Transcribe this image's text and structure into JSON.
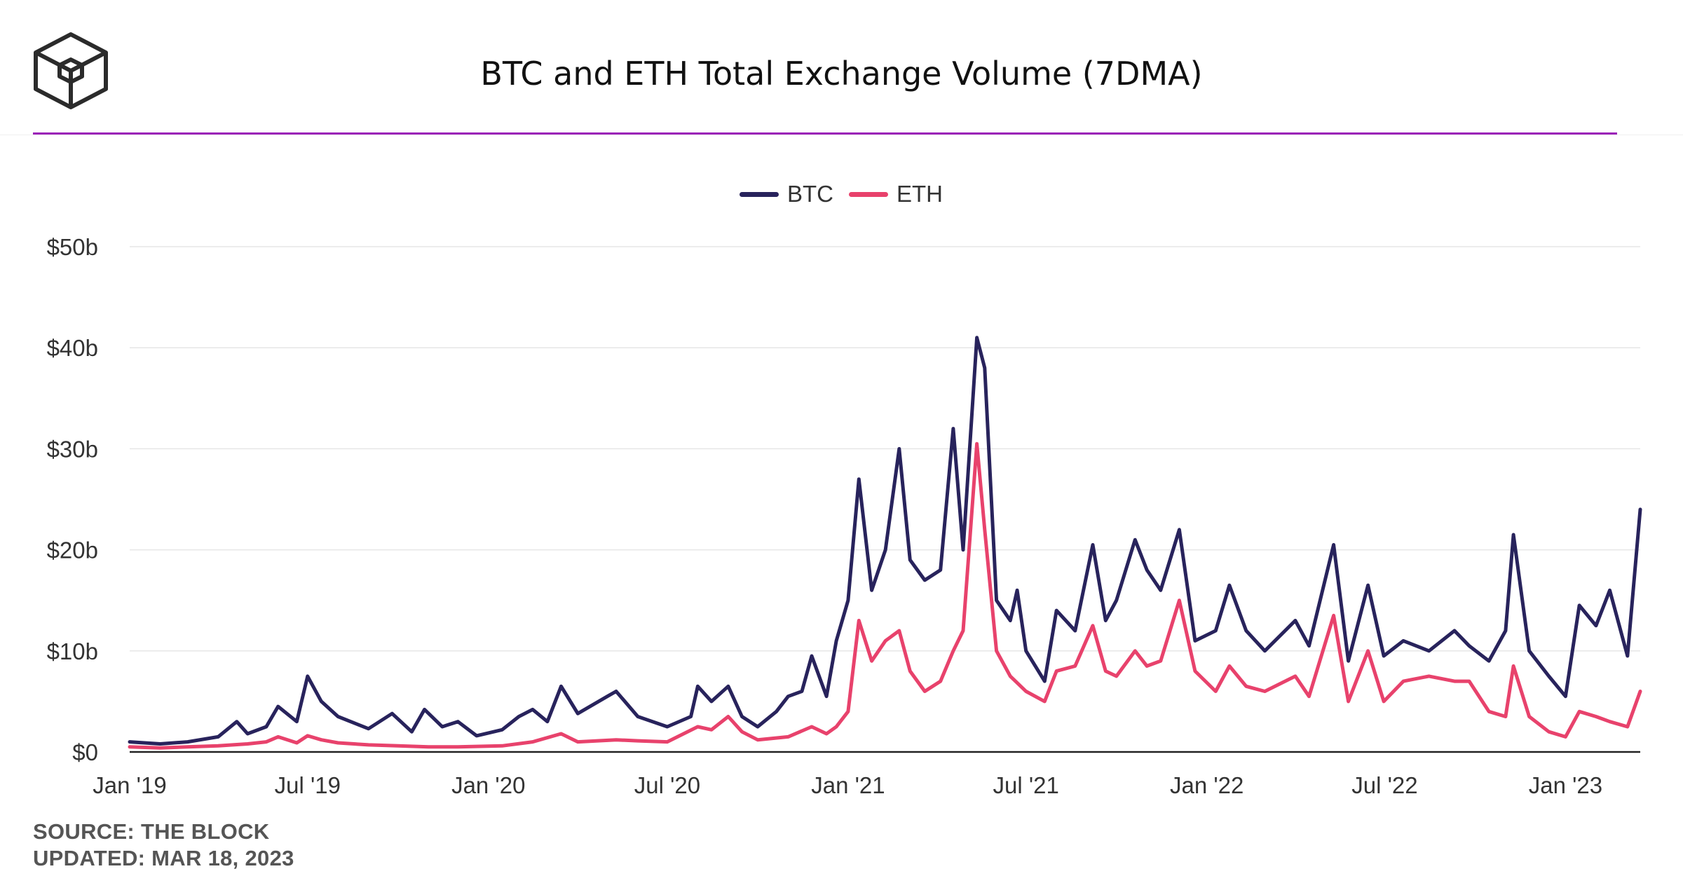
{
  "header": {
    "title": "BTC and ETH Total Exchange Volume (7DMA)"
  },
  "footer": {
    "source": "SOURCE: THE BLOCK",
    "updated": "UPDATED: MAR 18, 2023"
  },
  "colors": {
    "btc": "#28235c",
    "eth": "#e8426c",
    "accent_rule": "#9b1fb8",
    "grid": "#e6e6e6"
  },
  "chart_data": {
    "type": "line",
    "title": "BTC and ETH Total Exchange Volume (7DMA)",
    "xlabel": "",
    "ylabel": "",
    "ylim": [
      0,
      50
    ],
    "y_unit": "billions USD",
    "y_ticks": [
      "$0",
      "$10b",
      "$20b",
      "$30b",
      "$40b",
      "$50b"
    ],
    "x_ticks": [
      "Jan '19",
      "Jul '19",
      "Jan '20",
      "Jul '20",
      "Jan '21",
      "Jul '21",
      "Jan '22",
      "Jul '22",
      "Jan '23"
    ],
    "x_range": [
      "2019-01-01",
      "2023-03-18"
    ],
    "grid": "horizontal",
    "legend_position": "top-center",
    "series": [
      {
        "name": "BTC",
        "points": [
          [
            "2019-01-01",
            1.0
          ],
          [
            "2019-02-01",
            0.8
          ],
          [
            "2019-03-01",
            1.0
          ],
          [
            "2019-04-01",
            1.5
          ],
          [
            "2019-04-20",
            3.0
          ],
          [
            "2019-05-01",
            1.8
          ],
          [
            "2019-05-20",
            2.5
          ],
          [
            "2019-06-01",
            4.5
          ],
          [
            "2019-06-20",
            3.0
          ],
          [
            "2019-07-01",
            7.5
          ],
          [
            "2019-07-15",
            5.0
          ],
          [
            "2019-08-01",
            3.5
          ],
          [
            "2019-09-01",
            2.3
          ],
          [
            "2019-09-25",
            3.8
          ],
          [
            "2019-10-15",
            2.0
          ],
          [
            "2019-10-28",
            4.2
          ],
          [
            "2019-11-15",
            2.5
          ],
          [
            "2019-12-01",
            3.0
          ],
          [
            "2019-12-20",
            1.6
          ],
          [
            "2020-01-15",
            2.2
          ],
          [
            "2020-02-01",
            3.5
          ],
          [
            "2020-02-15",
            4.2
          ],
          [
            "2020-03-01",
            3.0
          ],
          [
            "2020-03-15",
            6.5
          ],
          [
            "2020-04-01",
            3.8
          ],
          [
            "2020-05-01",
            5.5
          ],
          [
            "2020-05-10",
            6.0
          ],
          [
            "2020-06-01",
            3.5
          ],
          [
            "2020-07-01",
            2.5
          ],
          [
            "2020-07-25",
            3.5
          ],
          [
            "2020-08-01",
            6.5
          ],
          [
            "2020-08-15",
            5.0
          ],
          [
            "2020-09-01",
            6.5
          ],
          [
            "2020-09-15",
            3.5
          ],
          [
            "2020-10-01",
            2.5
          ],
          [
            "2020-10-20",
            4.0
          ],
          [
            "2020-11-01",
            5.5
          ],
          [
            "2020-11-15",
            6.0
          ],
          [
            "2020-11-25",
            9.5
          ],
          [
            "2020-12-10",
            5.5
          ],
          [
            "2020-12-20",
            11.0
          ],
          [
            "2021-01-01",
            15.0
          ],
          [
            "2021-01-12",
            27.0
          ],
          [
            "2021-01-25",
            16.0
          ],
          [
            "2021-02-08",
            20.0
          ],
          [
            "2021-02-22",
            30.0
          ],
          [
            "2021-03-05",
            19.0
          ],
          [
            "2021-03-20",
            17.0
          ],
          [
            "2021-04-05",
            18.0
          ],
          [
            "2021-04-18",
            32.0
          ],
          [
            "2021-04-28",
            20.0
          ],
          [
            "2021-05-12",
            41.0
          ],
          [
            "2021-05-20",
            38.0
          ],
          [
            "2021-06-01",
            15.0
          ],
          [
            "2021-06-15",
            13.0
          ],
          [
            "2021-06-22",
            16.0
          ],
          [
            "2021-07-01",
            10.0
          ],
          [
            "2021-07-20",
            7.0
          ],
          [
            "2021-08-01",
            14.0
          ],
          [
            "2021-08-20",
            12.0
          ],
          [
            "2021-09-07",
            20.5
          ],
          [
            "2021-09-20",
            13.0
          ],
          [
            "2021-10-01",
            15.0
          ],
          [
            "2021-10-20",
            21.0
          ],
          [
            "2021-11-01",
            18.0
          ],
          [
            "2021-11-15",
            16.0
          ],
          [
            "2021-12-04",
            22.0
          ],
          [
            "2021-12-20",
            11.0
          ],
          [
            "2022-01-10",
            12.0
          ],
          [
            "2022-01-24",
            16.5
          ],
          [
            "2022-02-10",
            12.0
          ],
          [
            "2022-03-01",
            10.0
          ],
          [
            "2022-04-01",
            13.0
          ],
          [
            "2022-04-15",
            10.5
          ],
          [
            "2022-05-10",
            20.5
          ],
          [
            "2022-05-25",
            9.0
          ],
          [
            "2022-06-14",
            16.5
          ],
          [
            "2022-06-30",
            9.5
          ],
          [
            "2022-07-20",
            11.0
          ],
          [
            "2022-08-15",
            10.0
          ],
          [
            "2022-09-10",
            12.0
          ],
          [
            "2022-09-25",
            10.5
          ],
          [
            "2022-10-15",
            9.0
          ],
          [
            "2022-11-01",
            12.0
          ],
          [
            "2022-11-09",
            21.5
          ],
          [
            "2022-11-25",
            10.0
          ],
          [
            "2022-12-15",
            7.5
          ],
          [
            "2023-01-01",
            5.5
          ],
          [
            "2023-01-15",
            14.5
          ],
          [
            "2023-02-01",
            12.5
          ],
          [
            "2023-02-15",
            16.0
          ],
          [
            "2023-03-05",
            9.5
          ],
          [
            "2023-03-18",
            24.0
          ]
        ]
      },
      {
        "name": "ETH",
        "points": [
          [
            "2019-01-01",
            0.5
          ],
          [
            "2019-02-01",
            0.4
          ],
          [
            "2019-03-01",
            0.5
          ],
          [
            "2019-04-01",
            0.6
          ],
          [
            "2019-05-01",
            0.8
          ],
          [
            "2019-05-20",
            1.0
          ],
          [
            "2019-06-01",
            1.5
          ],
          [
            "2019-06-20",
            0.9
          ],
          [
            "2019-07-01",
            1.6
          ],
          [
            "2019-07-15",
            1.2
          ],
          [
            "2019-08-01",
            0.9
          ],
          [
            "2019-09-01",
            0.7
          ],
          [
            "2019-10-01",
            0.6
          ],
          [
            "2019-11-01",
            0.5
          ],
          [
            "2019-12-01",
            0.5
          ],
          [
            "2020-01-15",
            0.6
          ],
          [
            "2020-02-15",
            1.0
          ],
          [
            "2020-03-15",
            1.8
          ],
          [
            "2020-04-01",
            1.0
          ],
          [
            "2020-05-10",
            1.2
          ],
          [
            "2020-06-01",
            1.1
          ],
          [
            "2020-07-01",
            1.0
          ],
          [
            "2020-08-01",
            2.5
          ],
          [
            "2020-08-15",
            2.2
          ],
          [
            "2020-09-01",
            3.5
          ],
          [
            "2020-09-15",
            2.0
          ],
          [
            "2020-10-01",
            1.2
          ],
          [
            "2020-11-01",
            1.5
          ],
          [
            "2020-11-25",
            2.5
          ],
          [
            "2020-12-10",
            1.8
          ],
          [
            "2020-12-20",
            2.5
          ],
          [
            "2021-01-01",
            4.0
          ],
          [
            "2021-01-12",
            13.0
          ],
          [
            "2021-01-25",
            9.0
          ],
          [
            "2021-02-08",
            11.0
          ],
          [
            "2021-02-22",
            12.0
          ],
          [
            "2021-03-05",
            8.0
          ],
          [
            "2021-03-20",
            6.0
          ],
          [
            "2021-04-05",
            7.0
          ],
          [
            "2021-04-18",
            10.0
          ],
          [
            "2021-04-28",
            12.0
          ],
          [
            "2021-05-12",
            30.5
          ],
          [
            "2021-05-20",
            22.0
          ],
          [
            "2021-06-01",
            10.0
          ],
          [
            "2021-06-15",
            7.5
          ],
          [
            "2021-07-01",
            6.0
          ],
          [
            "2021-07-20",
            5.0
          ],
          [
            "2021-08-01",
            8.0
          ],
          [
            "2021-08-20",
            8.5
          ],
          [
            "2021-09-07",
            12.5
          ],
          [
            "2021-09-20",
            8.0
          ],
          [
            "2021-10-01",
            7.5
          ],
          [
            "2021-10-20",
            10.0
          ],
          [
            "2021-11-01",
            8.5
          ],
          [
            "2021-11-15",
            9.0
          ],
          [
            "2021-12-04",
            15.0
          ],
          [
            "2021-12-20",
            8.0
          ],
          [
            "2022-01-10",
            6.0
          ],
          [
            "2022-01-24",
            8.5
          ],
          [
            "2022-02-10",
            6.5
          ],
          [
            "2022-03-01",
            6.0
          ],
          [
            "2022-04-01",
            7.5
          ],
          [
            "2022-04-15",
            5.5
          ],
          [
            "2022-05-10",
            13.5
          ],
          [
            "2022-05-25",
            5.0
          ],
          [
            "2022-06-14",
            10.0
          ],
          [
            "2022-06-30",
            5.0
          ],
          [
            "2022-07-20",
            7.0
          ],
          [
            "2022-08-15",
            7.5
          ],
          [
            "2022-09-10",
            7.0
          ],
          [
            "2022-09-25",
            7.0
          ],
          [
            "2022-10-15",
            4.0
          ],
          [
            "2022-11-01",
            3.5
          ],
          [
            "2022-11-09",
            8.5
          ],
          [
            "2022-11-25",
            3.5
          ],
          [
            "2022-12-15",
            2.0
          ],
          [
            "2023-01-01",
            1.5
          ],
          [
            "2023-01-15",
            4.0
          ],
          [
            "2023-02-01",
            3.5
          ],
          [
            "2023-02-15",
            3.0
          ],
          [
            "2023-03-05",
            2.5
          ],
          [
            "2023-03-18",
            6.0
          ]
        ]
      }
    ]
  }
}
